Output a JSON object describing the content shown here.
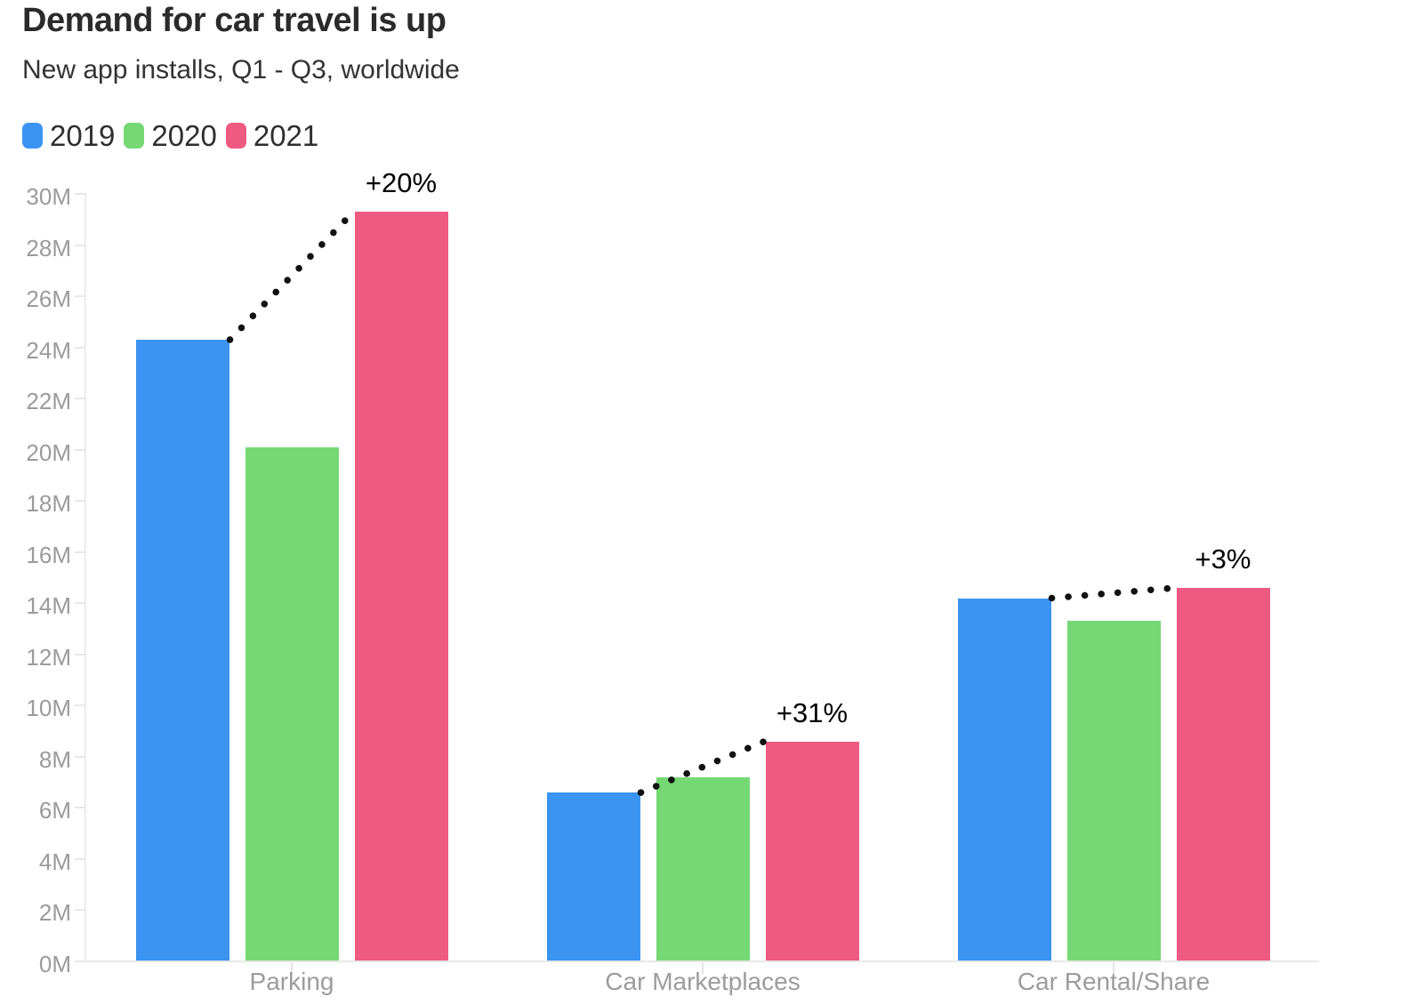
{
  "header": {
    "title": "Demand for car travel is up",
    "subtitle": "New app installs, Q1 - Q3, worldwide"
  },
  "chart_data": {
    "type": "bar",
    "title": "Demand for car travel is up",
    "subtitle": "New app installs, Q1 - Q3, worldwide",
    "categories": [
      "Parking",
      "Car Marketplaces",
      "Car Rental/Share"
    ],
    "series": [
      {
        "name": "2019",
        "color": "#3b94f1",
        "values": [
          24.3,
          6.6,
          14.2
        ]
      },
      {
        "name": "2020",
        "color": "#75d874",
        "values": [
          20.1,
          7.2,
          13.3
        ]
      },
      {
        "name": "2021",
        "color": "#ee5a82",
        "values": [
          29.3,
          8.6,
          14.6
        ]
      }
    ],
    "unit": "M",
    "ylim": [
      0,
      30
    ],
    "ytick_step": 2,
    "ytick_labels": [
      "0M",
      "2M",
      "4M",
      "6M",
      "8M",
      "10M",
      "12M",
      "14M",
      "16M",
      "18M",
      "20M",
      "22M",
      "24M",
      "26M",
      "28M",
      "30M"
    ],
    "grid": false,
    "legend_position": "top-left",
    "annotations": [
      {
        "category": "Parking",
        "label": "+20%",
        "from_series": "2019",
        "to_series": "2021"
      },
      {
        "category": "Car Marketplaces",
        "label": "+31%",
        "from_series": "2019",
        "to_series": "2021"
      },
      {
        "category": "Car Rental/Share",
        "label": "+3%",
        "from_series": "2019",
        "to_series": "2021"
      }
    ]
  },
  "colors": {
    "title_text": "#2b2b2b",
    "subtitle_text": "#333333",
    "tick_text": "#9b9b9b",
    "category_text": "#9c9c9c",
    "axis_line": "#ececec",
    "annotation_text": "#000000",
    "dotted_line": "#111111"
  }
}
